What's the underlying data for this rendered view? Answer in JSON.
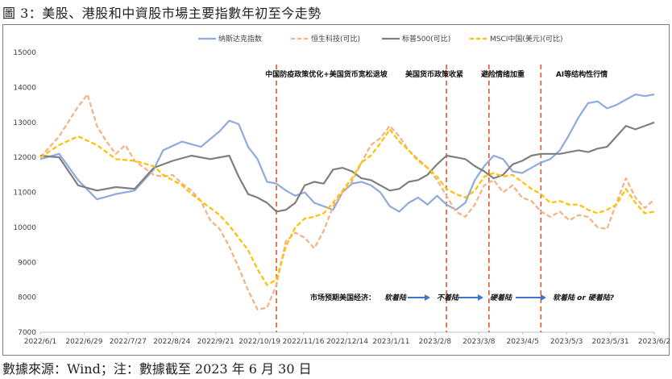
{
  "figure_title": "圖 3：美股、港股和中資股市場主要指數年初至今走勢",
  "footer": "數據來源：Wind；注：數據截至 2023 年 6 月 30 日",
  "chart_data": {
    "type": "line",
    "title": "",
    "xlabel": "",
    "ylabel": "",
    "ylim": [
      7000,
      15000
    ],
    "yticks": [
      "15000",
      "14000",
      "13000",
      "12000",
      "11000",
      "10000",
      "9000",
      "8000",
      "7000"
    ],
    "xticks": [
      "2022/6/1",
      "2022/6/29",
      "2022/7/27",
      "2022/8/24",
      "2022/9/21",
      "2022/10/19",
      "2022/11/16",
      "2022/12/14",
      "2023/1/11",
      "2023/2/8",
      "2023/3/8",
      "2023/4/5",
      "2023/5/3",
      "2023/5/31",
      "2023/6/2"
    ],
    "colors": {
      "nasdaq": "#8faadc",
      "hsi": "#f4b183",
      "sp500": "#7f7f7f",
      "msci": "#ffc000",
      "event_line": "#e4572e",
      "arrow": "#4472c4"
    },
    "legend_position": "top-center",
    "series": [
      {
        "key": "nasdaq",
        "name": "纳斯达克指数",
        "style": "solid",
        "points": [
          [
            0,
            11950
          ],
          [
            2,
            12100
          ],
          [
            4,
            11350
          ],
          [
            6,
            10800
          ],
          [
            8,
            10950
          ],
          [
            10,
            11050
          ],
          [
            12,
            11650
          ],
          [
            13,
            12200
          ],
          [
            15,
            12450
          ],
          [
            17,
            12300
          ],
          [
            19,
            12750
          ],
          [
            20,
            13050
          ],
          [
            21,
            12950
          ],
          [
            22,
            12300
          ],
          [
            23,
            11950
          ],
          [
            24,
            11300
          ],
          [
            25,
            11250
          ],
          [
            26,
            11050
          ],
          [
            27,
            10900
          ],
          [
            28,
            11000
          ],
          [
            29,
            10700
          ],
          [
            30,
            10600
          ],
          [
            31,
            10500
          ],
          [
            32,
            11000
          ],
          [
            33,
            11250
          ],
          [
            34,
            11300
          ],
          [
            35,
            11200
          ],
          [
            36,
            11000
          ],
          [
            37,
            10600
          ],
          [
            38,
            10450
          ],
          [
            39,
            10700
          ],
          [
            40,
            10850
          ],
          [
            41,
            10650
          ],
          [
            42,
            10900
          ],
          [
            43,
            10650
          ],
          [
            44,
            10500
          ],
          [
            45,
            10700
          ],
          [
            46,
            11350
          ],
          [
            47,
            11750
          ],
          [
            48,
            12050
          ],
          [
            49,
            11950
          ],
          [
            50,
            11600
          ],
          [
            51,
            11550
          ],
          [
            52,
            11700
          ],
          [
            53,
            11850
          ],
          [
            54,
            11950
          ],
          [
            55,
            12200
          ],
          [
            56,
            12650
          ],
          [
            57,
            13150
          ],
          [
            58,
            13550
          ],
          [
            59,
            13600
          ],
          [
            60,
            13400
          ],
          [
            61,
            13500
          ],
          [
            62,
            13650
          ],
          [
            63,
            13800
          ],
          [
            64,
            13750
          ],
          [
            65,
            13800
          ]
        ]
      },
      {
        "key": "hsi",
        "name": "恒生科技(可比)",
        "style": "dash",
        "points": [
          [
            0,
            12000
          ],
          [
            2,
            12600
          ],
          [
            4,
            13450
          ],
          [
            5,
            13800
          ],
          [
            6,
            12900
          ],
          [
            7,
            12450
          ],
          [
            8,
            12100
          ],
          [
            9,
            12350
          ],
          [
            10,
            11900
          ],
          [
            11,
            11700
          ],
          [
            12,
            11500
          ],
          [
            13,
            11450
          ],
          [
            14,
            11500
          ],
          [
            15,
            11250
          ],
          [
            16,
            11050
          ],
          [
            17,
            10750
          ],
          [
            18,
            10200
          ],
          [
            19,
            9950
          ],
          [
            20,
            9450
          ],
          [
            21,
            8850
          ],
          [
            22,
            8200
          ],
          [
            23,
            7650
          ],
          [
            24,
            7700
          ],
          [
            25,
            8350
          ],
          [
            26,
            9600
          ],
          [
            27,
            9850
          ],
          [
            28,
            9700
          ],
          [
            29,
            9400
          ],
          [
            30,
            9900
          ],
          [
            31,
            10600
          ],
          [
            32,
            11000
          ],
          [
            33,
            11300
          ],
          [
            34,
            11850
          ],
          [
            35,
            12350
          ],
          [
            36,
            12550
          ],
          [
            37,
            12900
          ],
          [
            38,
            12600
          ],
          [
            39,
            12200
          ],
          [
            40,
            11950
          ],
          [
            41,
            11700
          ],
          [
            42,
            11350
          ],
          [
            43,
            10900
          ],
          [
            44,
            10450
          ],
          [
            45,
            10300
          ],
          [
            46,
            10650
          ],
          [
            47,
            11200
          ],
          [
            48,
            11350
          ],
          [
            49,
            11000
          ],
          [
            50,
            11200
          ],
          [
            51,
            10850
          ],
          [
            52,
            10750
          ],
          [
            53,
            10450
          ],
          [
            54,
            10300
          ],
          [
            55,
            10450
          ],
          [
            56,
            10200
          ],
          [
            57,
            10350
          ],
          [
            58,
            10300
          ],
          [
            59,
            10000
          ],
          [
            60,
            9950
          ],
          [
            61,
            10700
          ],
          [
            62,
            11400
          ],
          [
            63,
            10850
          ],
          [
            64,
            10550
          ],
          [
            65,
            10800
          ]
        ]
      },
      {
        "key": "sp500",
        "name": "标普500(可比)",
        "style": "solid",
        "points": [
          [
            0,
            12050
          ],
          [
            2,
            12000
          ],
          [
            4,
            11200
          ],
          [
            6,
            11050
          ],
          [
            8,
            11150
          ],
          [
            10,
            11100
          ],
          [
            12,
            11700
          ],
          [
            14,
            11900
          ],
          [
            16,
            12050
          ],
          [
            18,
            11950
          ],
          [
            20,
            12050
          ],
          [
            21,
            11450
          ],
          [
            22,
            10950
          ],
          [
            23,
            10850
          ],
          [
            24,
            10700
          ],
          [
            25,
            10450
          ],
          [
            26,
            10500
          ],
          [
            27,
            10700
          ],
          [
            28,
            11200
          ],
          [
            29,
            11300
          ],
          [
            30,
            11250
          ],
          [
            31,
            11650
          ],
          [
            32,
            11700
          ],
          [
            33,
            11600
          ],
          [
            34,
            11400
          ],
          [
            35,
            11350
          ],
          [
            36,
            11200
          ],
          [
            37,
            11050
          ],
          [
            38,
            11100
          ],
          [
            39,
            11300
          ],
          [
            40,
            11350
          ],
          [
            41,
            11500
          ],
          [
            42,
            11800
          ],
          [
            43,
            12050
          ],
          [
            44,
            12000
          ],
          [
            45,
            11950
          ],
          [
            46,
            11750
          ],
          [
            47,
            11600
          ],
          [
            48,
            11400
          ],
          [
            49,
            11500
          ],
          [
            50,
            11800
          ],
          [
            51,
            11900
          ],
          [
            52,
            12050
          ],
          [
            53,
            12100
          ],
          [
            54,
            12100
          ],
          [
            55,
            12100
          ],
          [
            56,
            12150
          ],
          [
            57,
            12200
          ],
          [
            58,
            12150
          ],
          [
            59,
            12250
          ],
          [
            60,
            12300
          ],
          [
            61,
            12600
          ],
          [
            62,
            12900
          ],
          [
            63,
            12800
          ],
          [
            64,
            12900
          ],
          [
            65,
            13000
          ]
        ]
      },
      {
        "key": "msci",
        "name": "MSCI中国(美元)(可比)",
        "style": "dash",
        "points": [
          [
            0,
            12000
          ],
          [
            2,
            12350
          ],
          [
            4,
            12600
          ],
          [
            6,
            12350
          ],
          [
            8,
            11950
          ],
          [
            10,
            11900
          ],
          [
            12,
            11750
          ],
          [
            13,
            11500
          ],
          [
            14,
            11350
          ],
          [
            15,
            11200
          ],
          [
            16,
            10950
          ],
          [
            17,
            10750
          ],
          [
            18,
            10550
          ],
          [
            19,
            10350
          ],
          [
            20,
            10050
          ],
          [
            21,
            9700
          ],
          [
            22,
            9350
          ],
          [
            23,
            8800
          ],
          [
            24,
            8350
          ],
          [
            25,
            8500
          ],
          [
            26,
            9450
          ],
          [
            27,
            10000
          ],
          [
            28,
            10250
          ],
          [
            29,
            10300
          ],
          [
            30,
            10400
          ],
          [
            31,
            10700
          ],
          [
            32,
            11050
          ],
          [
            33,
            11400
          ],
          [
            34,
            11850
          ],
          [
            35,
            12050
          ],
          [
            36,
            12400
          ],
          [
            37,
            12800
          ],
          [
            38,
            12450
          ],
          [
            39,
            12200
          ],
          [
            40,
            11900
          ],
          [
            41,
            11700
          ],
          [
            42,
            11450
          ],
          [
            43,
            11100
          ],
          [
            44,
            10950
          ],
          [
            45,
            10850
          ],
          [
            46,
            11050
          ],
          [
            47,
            11450
          ],
          [
            48,
            11550
          ],
          [
            49,
            11450
          ],
          [
            50,
            11500
          ],
          [
            51,
            11300
          ],
          [
            52,
            11100
          ],
          [
            53,
            10950
          ],
          [
            54,
            10700
          ],
          [
            55,
            10750
          ],
          [
            56,
            10650
          ],
          [
            57,
            10650
          ],
          [
            58,
            10500
          ],
          [
            59,
            10400
          ],
          [
            60,
            10500
          ],
          [
            61,
            10650
          ],
          [
            62,
            11100
          ],
          [
            63,
            10700
          ],
          [
            64,
            10400
          ],
          [
            65,
            10450
          ]
        ]
      }
    ],
    "events": [
      {
        "x": 25.0,
        "label": "中国防疫政策优化+美国货币宽松退坡"
      },
      {
        "x": 43.0,
        "label": "美国货币政策收紧"
      },
      {
        "x": 47.5,
        "label": "避险情绪加重"
      },
      {
        "x": 53.0,
        "label": "AI等结构性行情"
      }
    ],
    "expectation": {
      "prefix": "市场预期美国经济：",
      "stages": [
        "软着陆",
        "不着陆",
        "硬着陆",
        "软着陆 or 硬着陆?"
      ]
    }
  }
}
